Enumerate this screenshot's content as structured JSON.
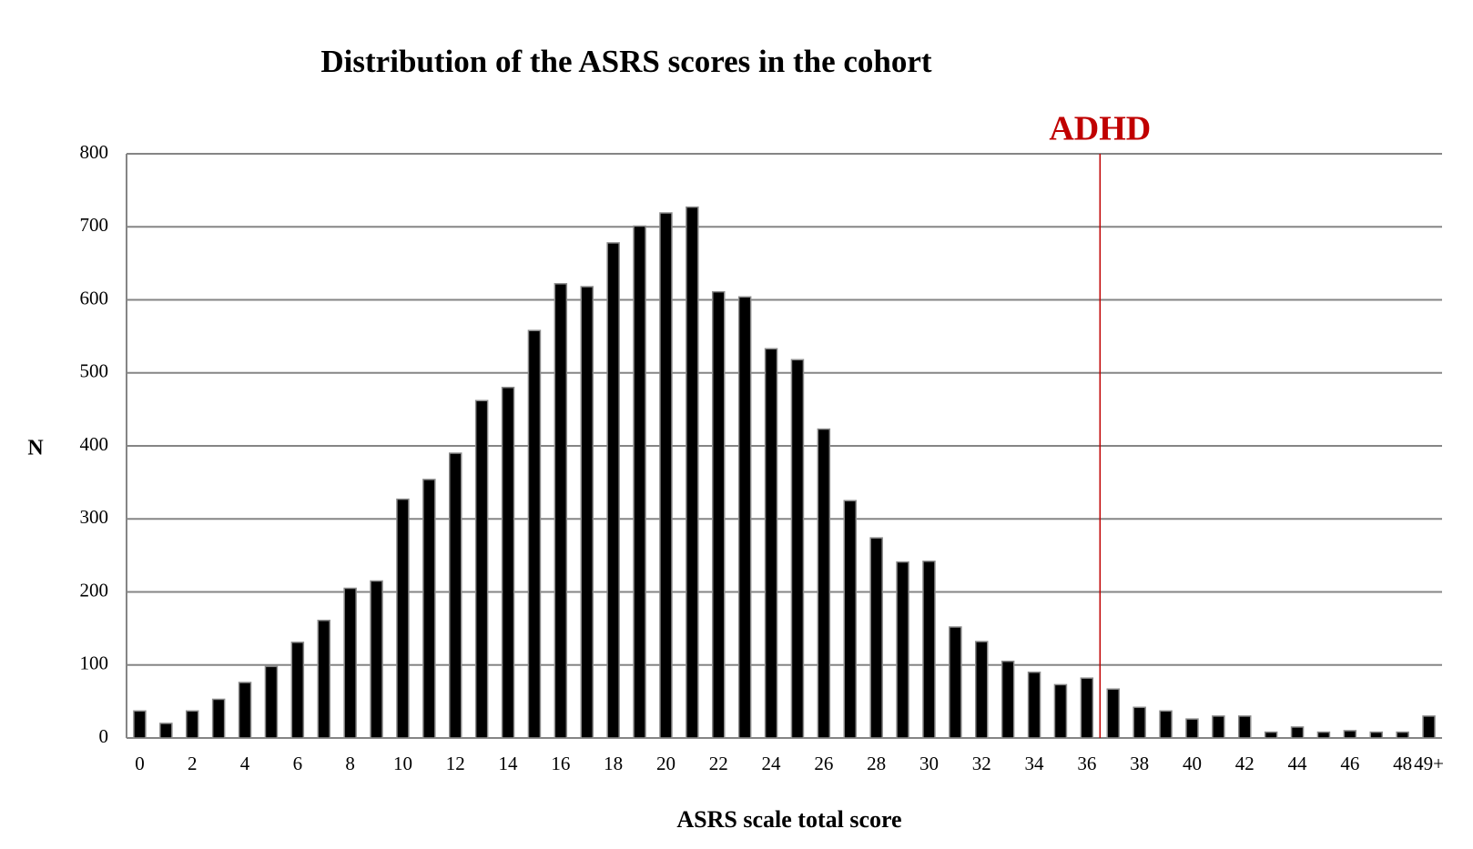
{
  "chart_data": {
    "type": "bar",
    "title": "Distribution of the ASRS scores in the cohort",
    "x_label": "ASRS scale total score",
    "y_label": "N",
    "categories": [
      "0",
      null,
      "2",
      null,
      "4",
      null,
      "6",
      null,
      "8",
      null,
      "10",
      null,
      "12",
      null,
      "14",
      null,
      "16",
      null,
      "18",
      null,
      "20",
      null,
      "22",
      null,
      "24",
      null,
      "26",
      null,
      "28",
      null,
      "30",
      null,
      "32",
      null,
      "34",
      null,
      "36",
      null,
      "38",
      null,
      "40",
      null,
      "42",
      null,
      "44",
      null,
      "46",
      null,
      "48",
      "49+"
    ],
    "values": [
      37,
      20,
      37,
      53,
      76,
      98,
      131,
      161,
      205,
      215,
      327,
      354,
      390,
      462,
      480,
      558,
      622,
      618,
      678,
      701,
      719,
      727,
      611,
      604,
      533,
      518,
      423,
      325,
      274,
      241,
      242,
      152,
      132,
      105,
      90,
      73,
      82,
      67,
      42,
      37,
      26,
      30,
      30,
      8,
      15,
      8,
      10,
      8,
      8,
      30
    ],
    "color": "#000000",
    "ylim": [
      0,
      800
    ],
    "yticks": [
      0,
      100,
      200,
      300,
      400,
      500,
      600,
      700,
      800
    ],
    "grid": true,
    "annotation": {
      "text": "ADHD",
      "after": "36",
      "color": "#c00000"
    }
  }
}
